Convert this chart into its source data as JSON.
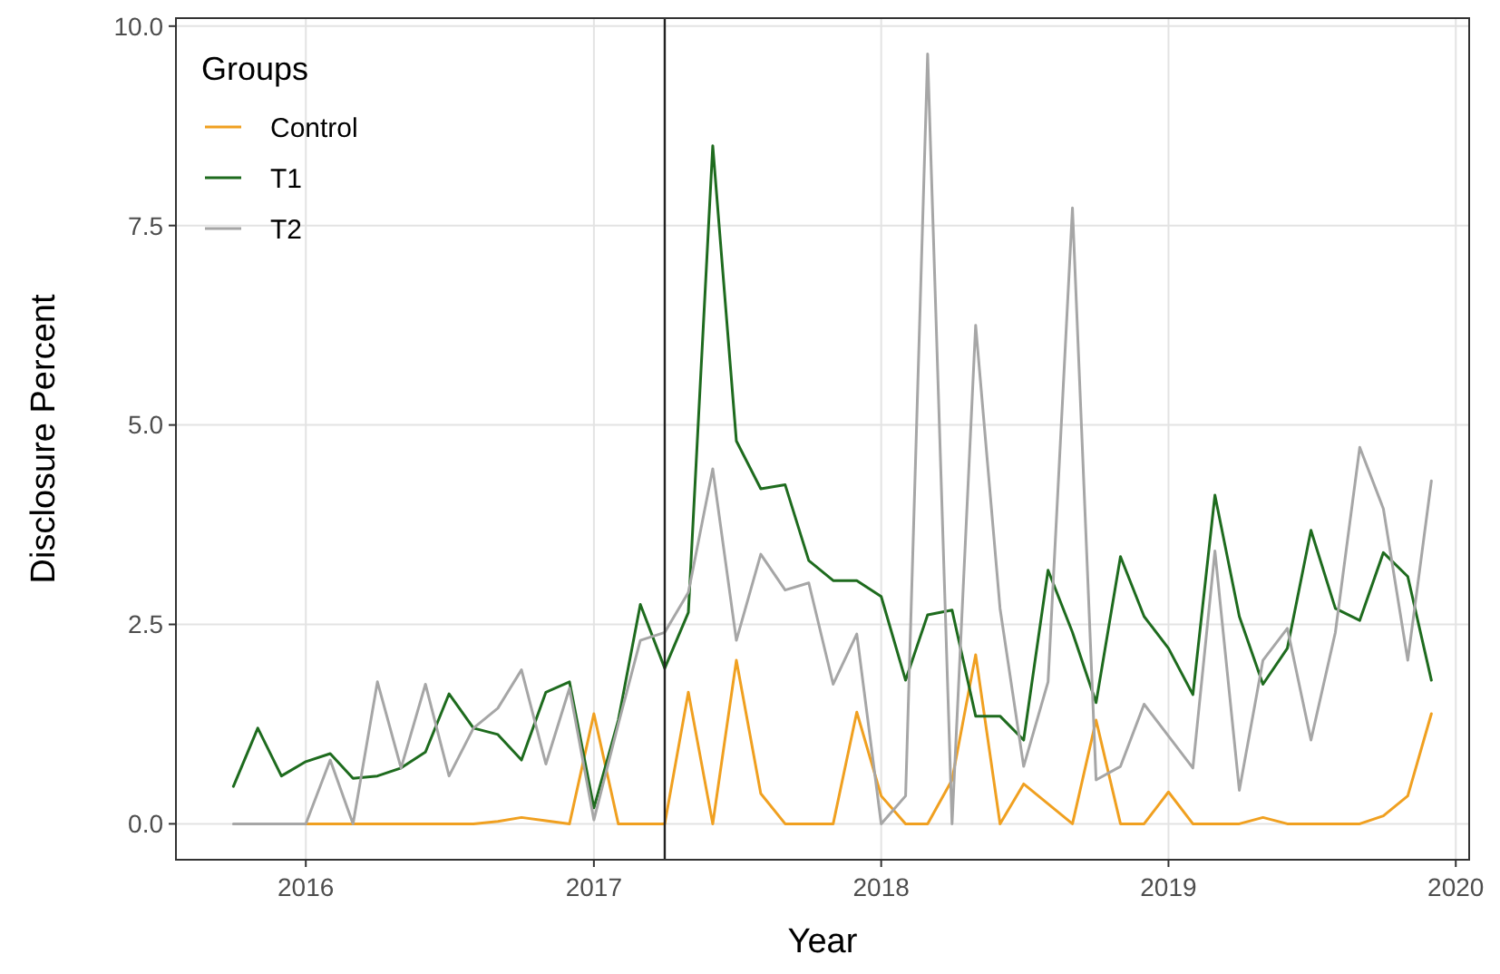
{
  "chart_data": {
    "type": "line",
    "xlabel": "Year",
    "ylabel": "Disclosure Percent",
    "legend_title": "Groups",
    "x": [
      "2015-10",
      "2015-11",
      "2015-12",
      "2016-01",
      "2016-02",
      "2016-03",
      "2016-04",
      "2016-05",
      "2016-06",
      "2016-07",
      "2016-08",
      "2016-09",
      "2016-10",
      "2016-11",
      "2016-12",
      "2017-01",
      "2017-02",
      "2017-03",
      "2017-04",
      "2017-05",
      "2017-06",
      "2017-07",
      "2017-08",
      "2017-09",
      "2017-10",
      "2017-11",
      "2017-12",
      "2018-01",
      "2018-02",
      "2018-03",
      "2018-04",
      "2018-05",
      "2018-06",
      "2018-07",
      "2018-08",
      "2018-09",
      "2018-10",
      "2018-11",
      "2018-12",
      "2019-01",
      "2019-02",
      "2019-03",
      "2019-04",
      "2019-05",
      "2019-06",
      "2019-07",
      "2019-08",
      "2019-09",
      "2019-10",
      "2019-11",
      "2019-12"
    ],
    "series": [
      {
        "name": "Control",
        "color": "#f0a020",
        "values": [
          null,
          null,
          null,
          0,
          0,
          0,
          0,
          0,
          0,
          0,
          0,
          0.03,
          0.08,
          0.04,
          0,
          1.38,
          0,
          0,
          0,
          1.65,
          0,
          2.05,
          0.38,
          0,
          0,
          0,
          1.4,
          0.35,
          0,
          0,
          0.55,
          2.12,
          0,
          0.5,
          0.25,
          0,
          1.3,
          0,
          0,
          0.4,
          0,
          0,
          0,
          0.08,
          0,
          0,
          0,
          0,
          0.1,
          0.35,
          1.38
        ]
      },
      {
        "name": "T1",
        "color": "#1e6b1e",
        "values": [
          0.47,
          1.2,
          0.6,
          0.78,
          0.88,
          0.57,
          0.6,
          0.7,
          0.9,
          1.63,
          1.2,
          1.12,
          0.8,
          1.65,
          1.78,
          0.2,
          1.3,
          2.75,
          1.95,
          2.65,
          8.5,
          4.8,
          4.2,
          4.25,
          3.3,
          3.05,
          3.05,
          2.85,
          1.8,
          2.62,
          2.68,
          1.35,
          1.35,
          1.05,
          3.18,
          2.4,
          1.52,
          3.35,
          2.6,
          2.2,
          1.62,
          4.12,
          2.6,
          1.75,
          2.2,
          3.68,
          2.7,
          2.55,
          3.4,
          3.1,
          1.8
        ]
      },
      {
        "name": "T2",
        "color": "#a6a6a6",
        "values": [
          0,
          0,
          0,
          0,
          0.8,
          0,
          1.78,
          0.7,
          1.75,
          0.6,
          1.2,
          1.45,
          1.93,
          0.75,
          1.7,
          0.05,
          1.25,
          2.3,
          2.4,
          2.9,
          4.45,
          2.3,
          3.38,
          2.93,
          3.02,
          1.75,
          2.38,
          0,
          0.35,
          9.65,
          0,
          6.25,
          2.7,
          0.72,
          1.78,
          7.72,
          0.55,
          0.72,
          1.5,
          1.1,
          0.7,
          3.42,
          0.42,
          2.05,
          2.45,
          1.05,
          2.4,
          4.72,
          3.95,
          2.05,
          4.3
        ]
      }
    ],
    "xlim": [
      "2015-07-20",
      "2020-01-18"
    ],
    "xticks": [
      "2016",
      "2017",
      "2018",
      "2019",
      "2020"
    ],
    "ylim": [
      -0.45,
      10.1
    ],
    "yticks": [
      {
        "value": 0,
        "label": "0.0"
      },
      {
        "value": 2.5,
        "label": "2.5"
      },
      {
        "value": 5,
        "label": "5.0"
      },
      {
        "value": 7.5,
        "label": "7.5"
      },
      {
        "value": 10,
        "label": "10.0"
      }
    ],
    "ref_lines": [
      {
        "axis": "x",
        "value": "2017-04",
        "color": "#222222"
      }
    ],
    "grid": true,
    "legend": "top left",
    "line_style": "solid",
    "marker": "none"
  }
}
